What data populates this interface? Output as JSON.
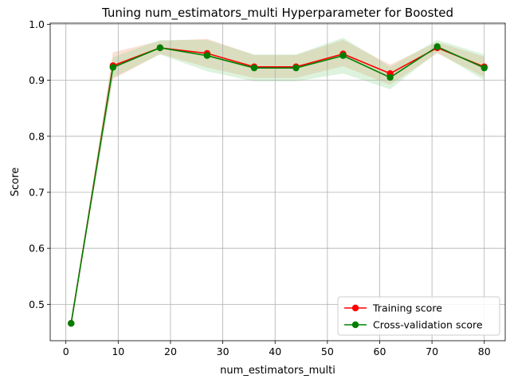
{
  "chart_data": {
    "type": "line",
    "title": "Tuning num_estimators_multi Hyperparameter for Boosted",
    "xlabel": "num_estimators_multi",
    "ylabel": "Score",
    "xlim": [
      -3,
      84
    ],
    "ylim": [
      0.435,
      1.002
    ],
    "xticks": [
      0,
      10,
      20,
      30,
      40,
      50,
      60,
      70,
      80
    ],
    "yticks": [
      0.5,
      0.6,
      0.7,
      0.8,
      0.9,
      1.0
    ],
    "grid": true,
    "legend_position": "lower right",
    "x": [
      1,
      9,
      18,
      27,
      36,
      44,
      53,
      62,
      71,
      80
    ],
    "series": [
      {
        "name": "Training score",
        "color": "#ff0000",
        "band_color": "#f4a582",
        "values": [
          0.466,
          0.926,
          0.958,
          0.948,
          0.924,
          0.924,
          0.947,
          0.912,
          0.958,
          0.924
        ],
        "lower": [
          0.466,
          0.902,
          0.947,
          0.923,
          0.904,
          0.904,
          0.925,
          0.892,
          0.948,
          0.906
        ],
        "upper": [
          0.466,
          0.95,
          0.97,
          0.974,
          0.945,
          0.945,
          0.972,
          0.928,
          0.968,
          0.942
        ]
      },
      {
        "name": "Cross-validation score",
        "color": "#008000",
        "band_color": "#90d890",
        "values": [
          0.466,
          0.923,
          0.958,
          0.944,
          0.922,
          0.922,
          0.944,
          0.905,
          0.96,
          0.922
        ],
        "lower": [
          0.466,
          0.905,
          0.946,
          0.916,
          0.898,
          0.898,
          0.912,
          0.884,
          0.95,
          0.9
        ],
        "upper": [
          0.466,
          0.941,
          0.972,
          0.972,
          0.946,
          0.946,
          0.976,
          0.924,
          0.972,
          0.946
        ]
      }
    ]
  }
}
